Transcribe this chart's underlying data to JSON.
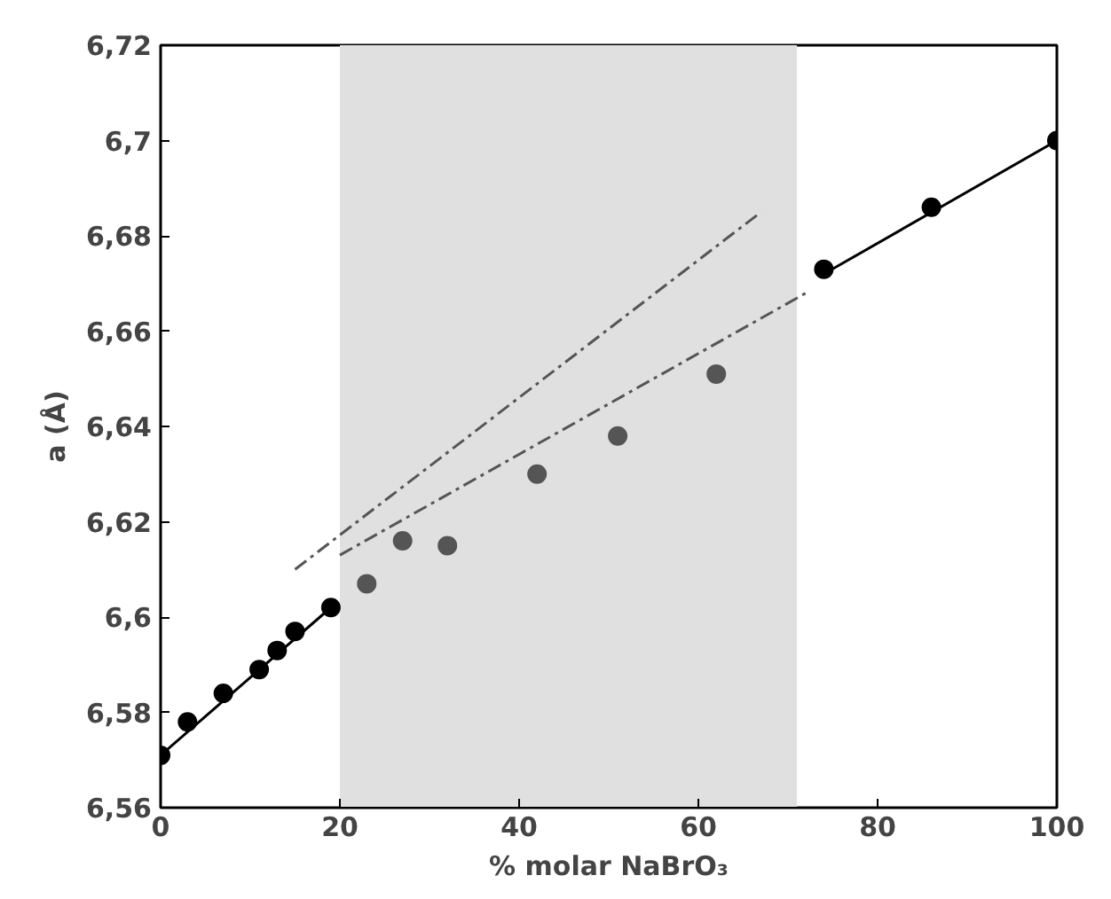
{
  "chart_data": {
    "type": "scatter",
    "xlabel": "% molar NaBrO₃",
    "ylabel": "a (Å)",
    "xlim": [
      0,
      100
    ],
    "xticks": [
      0,
      20,
      40,
      60,
      80,
      100
    ],
    "ylim": [
      6.56,
      6.72
    ],
    "yticks": [
      {
        "value": 6.56,
        "label": "6,56"
      },
      {
        "value": 6.58,
        "label": "6,58"
      },
      {
        "value": 6.6,
        "label": "6,6"
      },
      {
        "value": 6.62,
        "label": "6,62"
      },
      {
        "value": 6.64,
        "label": "6,64"
      },
      {
        "value": 6.66,
        "label": "6,66"
      },
      {
        "value": 6.68,
        "label": "6,68"
      },
      {
        "value": 6.7,
        "label": "6,7"
      },
      {
        "value": 6.72,
        "label": "6,72"
      }
    ],
    "grid": false,
    "marker": "circle",
    "bands": [
      {
        "axis": "x",
        "from": 20,
        "to": 71,
        "color": "#e0e0e0"
      }
    ],
    "series": [
      {
        "type": "line",
        "color": "#000000",
        "marker": "none",
        "line_style": "solid",
        "x": [
          0,
          19
        ],
        "values": [
          6.571,
          6.602
        ]
      },
      {
        "type": "line",
        "color": "#000000",
        "marker": "none",
        "line_style": "solid",
        "x": [
          74,
          100
        ],
        "values": [
          6.672,
          6.7
        ]
      },
      {
        "type": "line",
        "color": "#555555",
        "marker": "none",
        "line_style": "dashed",
        "x": [
          15,
          67
        ],
        "values": [
          6.61,
          6.685
        ]
      },
      {
        "type": "line",
        "color": "#555555",
        "marker": "none",
        "line_style": "dashed",
        "x": [
          20,
          72
        ],
        "values": [
          6.613,
          6.668
        ]
      },
      {
        "color": "#000000",
        "x": [
          0,
          3,
          7,
          11,
          13,
          15,
          19,
          74,
          86,
          100
        ],
        "values": [
          6.571,
          6.578,
          6.584,
          6.589,
          6.593,
          6.597,
          6.602,
          6.673,
          6.686,
          6.7
        ]
      },
      {
        "color": "#555555",
        "x": [
          23,
          27,
          32,
          42,
          51,
          62
        ],
        "values": [
          6.607,
          6.616,
          6.615,
          6.63,
          6.638,
          6.651
        ]
      }
    ]
  }
}
